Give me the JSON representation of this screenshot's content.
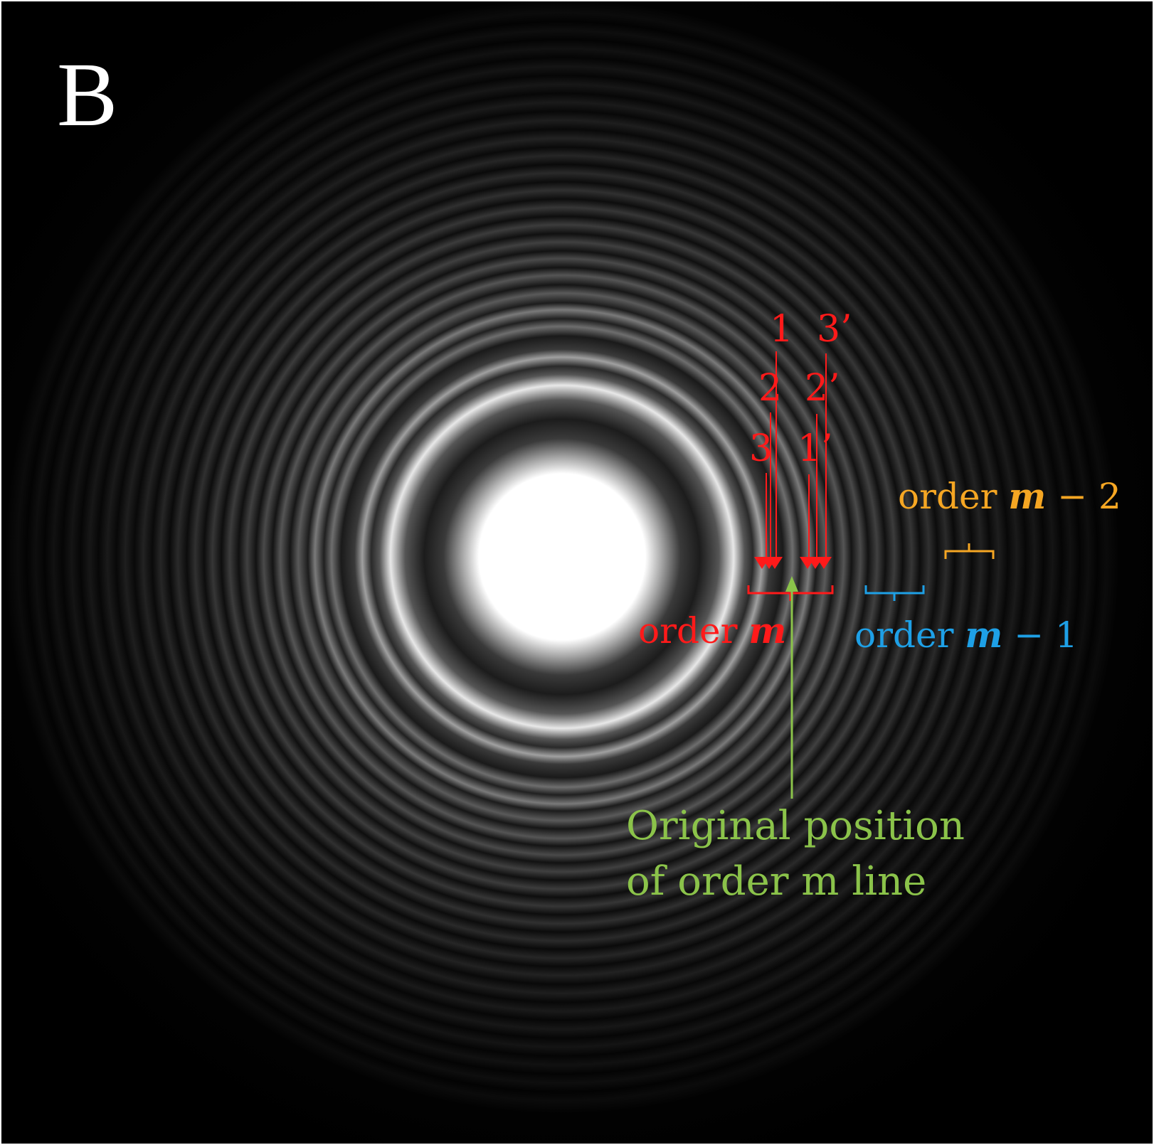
{
  "panel_label": "B",
  "colors": {
    "background": "#000000",
    "red": "#ff1a1a",
    "blue": "#1ea0e6",
    "orange": "#f5a623",
    "green": "#8bc34a",
    "white": "#ffffff"
  },
  "line_labels": {
    "l1": "1",
    "l2": "2",
    "l3": "3",
    "l1p": "1’",
    "l2p": "2’",
    "l3p": "3’"
  },
  "orders": {
    "m": {
      "prefix": "order ",
      "var": "m"
    },
    "m1": {
      "prefix": "order ",
      "var": "m",
      "suffix": " − 1"
    },
    "m2": {
      "prefix": "order ",
      "var": "m",
      "suffix": " − 2"
    }
  },
  "original_position": {
    "line1": "Original position",
    "line2": "of order m line"
  }
}
